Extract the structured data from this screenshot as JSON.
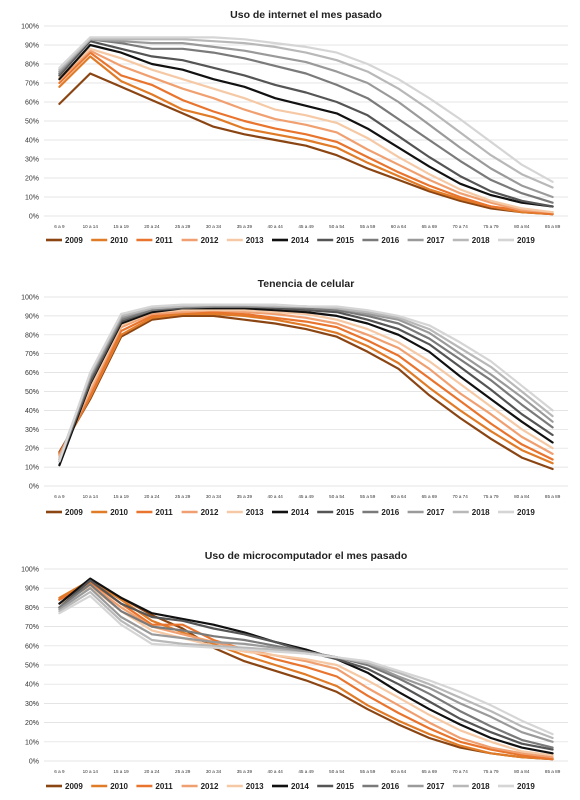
{
  "chart_data": [
    {
      "type": "line",
      "title": "Uso de internet el mes pasado",
      "categories": [
        "6 a 9",
        "10 a 14",
        "15 a 19",
        "20 a 24",
        "25 a 29",
        "30 a 34",
        "35 a 39",
        "40 a 44",
        "45 a 49",
        "50 a 54",
        "55 a 59",
        "60 a 64",
        "65 a 69",
        "70 a 74",
        "75 a 79",
        "80 a 84",
        "85 a 89"
      ],
      "ylim": [
        0,
        100
      ],
      "yticks": [
        "0%",
        "10%",
        "20%",
        "30%",
        "40%",
        "50%",
        "60%",
        "70%",
        "80%",
        "90%",
        "100%"
      ],
      "grid": true,
      "legend": "bottom",
      "series": [
        {
          "name": "2009",
          "color": "#8B4513",
          "values": [
            59,
            75,
            68,
            61,
            54,
            47,
            43,
            40,
            37,
            32,
            25,
            19,
            13,
            8,
            4,
            2,
            1
          ]
        },
        {
          "name": "2010",
          "color": "#E07B28",
          "values": [
            68,
            84,
            71,
            64,
            56,
            52,
            46,
            43,
            40,
            36,
            28,
            21,
            14,
            9,
            5,
            2,
            1
          ]
        },
        {
          "name": "2011",
          "color": "#E8742E",
          "values": [
            70,
            86,
            74,
            69,
            61,
            55,
            50,
            46,
            43,
            39,
            31,
            23,
            16,
            10,
            5,
            3,
            1
          ]
        },
        {
          "name": "2012",
          "color": "#F0A070",
          "values": [
            72,
            87,
            79,
            73,
            67,
            62,
            56,
            51,
            48,
            44,
            35,
            27,
            19,
            12,
            7,
            3,
            2
          ]
        },
        {
          "name": "2013",
          "color": "#F5C9A5",
          "values": [
            73,
            88,
            83,
            77,
            72,
            67,
            62,
            56,
            53,
            49,
            41,
            31,
            22,
            14,
            8,
            4,
            2
          ]
        },
        {
          "name": "2014",
          "color": "#111111",
          "values": [
            72,
            90,
            86,
            80,
            77,
            72,
            68,
            62,
            58,
            54,
            46,
            36,
            26,
            17,
            11,
            7,
            5
          ]
        },
        {
          "name": "2015",
          "color": "#555555",
          "values": [
            74,
            92,
            88,
            84,
            82,
            78,
            74,
            69,
            65,
            60,
            53,
            42,
            31,
            21,
            13,
            8,
            5
          ]
        },
        {
          "name": "2016",
          "color": "#7A7A7A",
          "values": [
            75,
            93,
            91,
            88,
            88,
            86,
            83,
            79,
            75,
            69,
            62,
            51,
            40,
            29,
            19,
            12,
            7
          ]
        },
        {
          "name": "2017",
          "color": "#9A9A9A",
          "values": [
            76,
            93,
            92,
            91,
            91,
            89,
            87,
            84,
            81,
            76,
            70,
            60,
            48,
            36,
            25,
            16,
            10
          ]
        },
        {
          "name": "2018",
          "color": "#B8B8B8",
          "values": [
            77,
            93,
            93,
            93,
            93,
            92,
            91,
            89,
            86,
            82,
            76,
            67,
            56,
            44,
            32,
            22,
            15
          ]
        },
        {
          "name": "2019",
          "color": "#D5D5D5",
          "values": [
            78,
            94,
            94,
            94,
            94,
            94,
            93,
            91,
            89,
            86,
            80,
            72,
            62,
            51,
            39,
            27,
            18
          ]
        }
      ]
    },
    {
      "type": "line",
      "title": "Tenencia de celular",
      "categories": [
        "6 a 9",
        "10 a 14",
        "15 a 19",
        "20 a 24",
        "25 a 29",
        "30 a 34",
        "35 a 39",
        "40 a 44",
        "45 a 49",
        "50 a 54",
        "55 a 59",
        "60 a 64",
        "65 a 69",
        "70 a 74",
        "75 a 79",
        "80 a 84",
        "85 a 89"
      ],
      "ylim": [
        0,
        100
      ],
      "yticks": [
        "0%",
        "10%",
        "20%",
        "30%",
        "40%",
        "50%",
        "60%",
        "70%",
        "80%",
        "90%",
        "100%"
      ],
      "grid": true,
      "legend": "bottom",
      "series": [
        {
          "name": "2009",
          "color": "#8B4513",
          "values": [
            18,
            46,
            79,
            88,
            90,
            90,
            88,
            86,
            83,
            79,
            71,
            62,
            48,
            36,
            25,
            15,
            9
          ]
        },
        {
          "name": "2010",
          "color": "#E07B28",
          "values": [
            17,
            47,
            80,
            89,
            91,
            91,
            90,
            88,
            85,
            81,
            74,
            65,
            52,
            40,
            29,
            19,
            12
          ]
        },
        {
          "name": "2011",
          "color": "#E8742E",
          "values": [
            17,
            48,
            82,
            90,
            92,
            92,
            91,
            89,
            87,
            84,
            77,
            69,
            57,
            45,
            33,
            22,
            14
          ]
        },
        {
          "name": "2012",
          "color": "#F0A070",
          "values": [
            16,
            50,
            84,
            91,
            92,
            93,
            92,
            91,
            89,
            86,
            80,
            73,
            62,
            49,
            38,
            26,
            17
          ]
        },
        {
          "name": "2013",
          "color": "#F5C9A5",
          "values": [
            15,
            52,
            85,
            92,
            93,
            93,
            93,
            92,
            91,
            88,
            83,
            76,
            66,
            54,
            42,
            30,
            20
          ]
        },
        {
          "name": "2014",
          "color": "#111111",
          "values": [
            11,
            54,
            86,
            92,
            94,
            94,
            94,
            93,
            92,
            90,
            86,
            80,
            71,
            58,
            46,
            34,
            23
          ]
        },
        {
          "name": "2015",
          "color": "#555555",
          "values": [
            13,
            55,
            87,
            93,
            94,
            95,
            95,
            94,
            93,
            92,
            88,
            83,
            75,
            63,
            51,
            38,
            27
          ]
        },
        {
          "name": "2016",
          "color": "#7A7A7A",
          "values": [
            13,
            57,
            88,
            93,
            95,
            95,
            95,
            95,
            94,
            93,
            90,
            86,
            78,
            67,
            56,
            43,
            31
          ]
        },
        {
          "name": "2017",
          "color": "#9A9A9A",
          "values": [
            14,
            58,
            89,
            94,
            95,
            95,
            95,
            95,
            95,
            94,
            91,
            88,
            81,
            70,
            59,
            47,
            34
          ]
        },
        {
          "name": "2018",
          "color": "#B8B8B8",
          "values": [
            14,
            59,
            90,
            94,
            95,
            96,
            96,
            95,
            95,
            94,
            92,
            89,
            83,
            73,
            63,
            50,
            37
          ]
        },
        {
          "name": "2019",
          "color": "#D5D5D5",
          "values": [
            13,
            60,
            91,
            95,
            96,
            96,
            96,
            96,
            95,
            95,
            93,
            90,
            85,
            76,
            66,
            53,
            40
          ]
        }
      ]
    },
    {
      "type": "line",
      "title": "Uso de microcomputador el mes pasado",
      "categories": [
        "6 a 9",
        "10 a 14",
        "15 a 19",
        "20 a 24",
        "25 a 29",
        "30 a 34",
        "35 a 39",
        "40 a 44",
        "45 a 49",
        "50 a 54",
        "55 a 59",
        "60 a 64",
        "65 a 69",
        "70 a 74",
        "75 a 79",
        "80 a 84",
        "85 a 89"
      ],
      "ylim": [
        0,
        100
      ],
      "yticks": [
        "0%",
        "10%",
        "20%",
        "30%",
        "40%",
        "50%",
        "60%",
        "70%",
        "80%",
        "90%",
        "100%"
      ],
      "grid": true,
      "legend": "bottom",
      "series": [
        {
          "name": "2009",
          "color": "#8B4513",
          "values": [
            84,
            94,
            85,
            76,
            69,
            59,
            52,
            47,
            42,
            36,
            27,
            19,
            12,
            7,
            4,
            2,
            1
          ]
        },
        {
          "name": "2010",
          "color": "#E07B28",
          "values": [
            85,
            94,
            84,
            73,
            67,
            61,
            55,
            50,
            45,
            39,
            29,
            21,
            14,
            8,
            4,
            2,
            1
          ]
        },
        {
          "name": "2011",
          "color": "#E8742E",
          "values": [
            84,
            93,
            82,
            71,
            71,
            63,
            58,
            53,
            49,
            44,
            34,
            25,
            17,
            10,
            6,
            3,
            1
          ]
        },
        {
          "name": "2012",
          "color": "#F0A070",
          "values": [
            82,
            92,
            80,
            70,
            66,
            62,
            58,
            55,
            52,
            48,
            38,
            29,
            20,
            12,
            7,
            4,
            2
          ]
        },
        {
          "name": "2013",
          "color": "#F5C9A5",
          "values": [
            82,
            91,
            78,
            68,
            64,
            60,
            57,
            55,
            53,
            50,
            42,
            33,
            24,
            16,
            10,
            5,
            3
          ]
        },
        {
          "name": "2014",
          "color": "#111111",
          "values": [
            82,
            95,
            85,
            77,
            74,
            71,
            67,
            62,
            58,
            53,
            46,
            36,
            27,
            19,
            12,
            7,
            4
          ]
        },
        {
          "name": "2015",
          "color": "#555555",
          "values": [
            80,
            94,
            82,
            75,
            73,
            69,
            66,
            62,
            57,
            53,
            48,
            40,
            31,
            22,
            15,
            9,
            6
          ]
        },
        {
          "name": "2016",
          "color": "#7A7A7A",
          "values": [
            80,
            92,
            78,
            70,
            68,
            65,
            63,
            60,
            57,
            54,
            50,
            43,
            35,
            26,
            18,
            11,
            7
          ]
        },
        {
          "name": "2017",
          "color": "#9A9A9A",
          "values": [
            79,
            90,
            75,
            66,
            64,
            62,
            61,
            59,
            57,
            54,
            51,
            44,
            38,
            30,
            23,
            15,
            10
          ]
        },
        {
          "name": "2018",
          "color": "#B8B8B8",
          "values": [
            78,
            88,
            73,
            63,
            61,
            60,
            59,
            58,
            56,
            54,
            51,
            46,
            40,
            33,
            26,
            18,
            12
          ]
        },
        {
          "name": "2019",
          "color": "#D5D5D5",
          "values": [
            77,
            86,
            71,
            61,
            60,
            59,
            58,
            57,
            56,
            54,
            52,
            47,
            42,
            36,
            29,
            21,
            14
          ]
        }
      ]
    }
  ]
}
